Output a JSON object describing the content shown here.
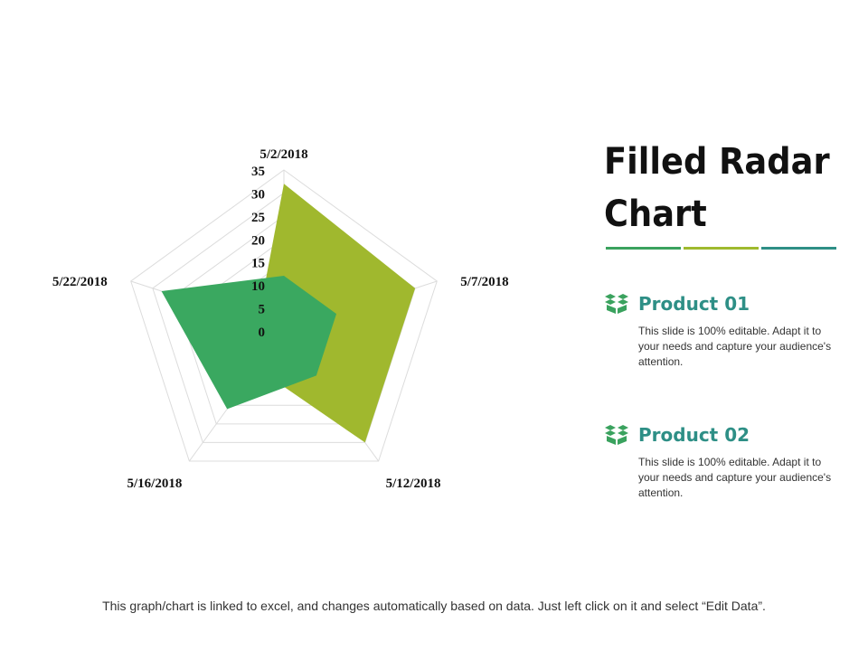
{
  "slide": {
    "title": "Filled Radar Chart",
    "accent_colors": [
      "#3aa25e",
      "#9fba2e",
      "#2e8f86"
    ],
    "footer": "This graph/chart is linked to excel, and changes automatically  based on data. Just left click on it and select “Edit Data”."
  },
  "legend": [
    {
      "name": "Product 01",
      "description": "This slide is 100% editable. Adapt it to your needs and capture your audience's attention.",
      "icon": "box-icon",
      "icon_color": "#3aa25e"
    },
    {
      "name": "Product 02",
      "description": "This slide is 100% editable. Adapt it to your needs and capture your audience's attention.",
      "icon": "box-icon",
      "icon_color": "#3aa25e"
    }
  ],
  "chart_data": {
    "type": "radar",
    "filled": true,
    "categories": [
      "5/2/2018",
      "5/7/2018",
      "5/12/2018",
      "5/16/2018",
      "5/22/2018"
    ],
    "r_ticks": [
      0,
      5,
      10,
      15,
      20,
      25,
      30,
      35
    ],
    "rlim": [
      0,
      35
    ],
    "grid": true,
    "series": [
      {
        "values": [
          32,
          30,
          30,
          10,
          6
        ],
        "color": "#a0b82e"
      },
      {
        "values": [
          12,
          12,
          12,
          21,
          28
        ],
        "color": "#3aa860"
      }
    ]
  }
}
